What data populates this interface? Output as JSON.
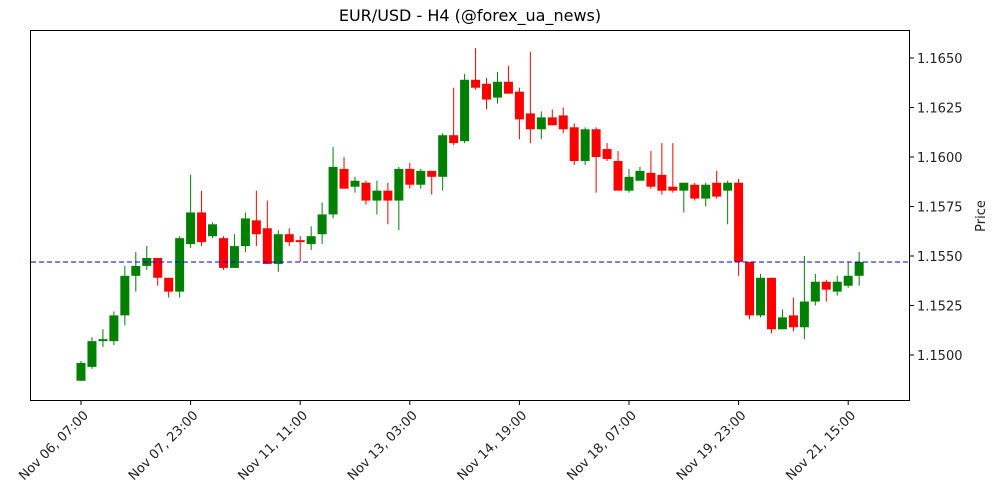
{
  "chart_data": {
    "type": "candlestick",
    "title": "EUR/USD - H4 (@forex_ua_news)",
    "xlabel": "",
    "ylabel": "Price",
    "ylim": [
      1.1481,
      1.1663
    ],
    "y_ticks": [
      "1.1500",
      "1.1525",
      "1.1550",
      "1.1575",
      "1.1600",
      "1.1625",
      "1.1650"
    ],
    "x_ticks": [
      {
        "index": 0,
        "label": "Nov 06, 07:00"
      },
      {
        "index": 10,
        "label": "Nov 07, 23:00"
      },
      {
        "index": 20,
        "label": "Nov 11, 11:00"
      },
      {
        "index": 30,
        "label": "Nov 13, 03:00"
      },
      {
        "index": 40,
        "label": "Nov 14, 19:00"
      },
      {
        "index": 50,
        "label": "Nov 18, 07:00"
      },
      {
        "index": 60,
        "label": "Nov 19, 23:00"
      },
      {
        "index": 70,
        "label": "Nov 21, 15:00"
      }
    ],
    "horizontal_line": {
      "value": 1.1547,
      "color": "#0000ff",
      "style": "dashed"
    },
    "colors": {
      "up": "#008000",
      "down": "#ff0000"
    },
    "grid": false,
    "ohlc": [
      [
        1.1487,
        1.1497,
        1.1487,
        1.1496
      ],
      [
        1.1494,
        1.1509,
        1.1493,
        1.1507
      ],
      [
        1.1507,
        1.1513,
        1.1504,
        1.1508
      ],
      [
        1.1507,
        1.1522,
        1.1505,
        1.152
      ],
      [
        1.152,
        1.1545,
        1.1515,
        1.154
      ],
      [
        1.154,
        1.1552,
        1.1532,
        1.1545
      ],
      [
        1.1545,
        1.1555,
        1.1543,
        1.1549
      ],
      [
        1.1549,
        1.1549,
        1.1535,
        1.1539
      ],
      [
        1.1539,
        1.1539,
        1.1529,
        1.1532
      ],
      [
        1.1532,
        1.156,
        1.1529,
        1.1559
      ],
      [
        1.1556,
        1.1591,
        1.1554,
        1.1572
      ],
      [
        1.1572,
        1.1583,
        1.1555,
        1.1557
      ],
      [
        1.156,
        1.1567,
        1.1559,
        1.1566
      ],
      [
        1.1559,
        1.156,
        1.1543,
        1.1544
      ],
      [
        1.1544,
        1.1561,
        1.1544,
        1.1555
      ],
      [
        1.1555,
        1.1572,
        1.1552,
        1.1569
      ],
      [
        1.1568,
        1.1583,
        1.1555,
        1.1561
      ],
      [
        1.1564,
        1.1578,
        1.1546,
        1.1546
      ],
      [
        1.1546,
        1.1563,
        1.1542,
        1.1561
      ],
      [
        1.1561,
        1.1564,
        1.1555,
        1.1557
      ],
      [
        1.1558,
        1.156,
        1.1547,
        1.1557
      ],
      [
        1.1556,
        1.1565,
        1.1553,
        1.156
      ],
      [
        1.1561,
        1.1577,
        1.1556,
        1.1571
      ],
      [
        1.1571,
        1.1605,
        1.1569,
        1.1595
      ],
      [
        1.1594,
        1.16,
        1.1584,
        1.1584
      ],
      [
        1.1585,
        1.159,
        1.1582,
        1.1588
      ],
      [
        1.1587,
        1.1588,
        1.1576,
        1.1578
      ],
      [
        1.1578,
        1.1588,
        1.1571,
        1.1583
      ],
      [
        1.1583,
        1.1587,
        1.1566,
        1.1578
      ],
      [
        1.1578,
        1.1595,
        1.1563,
        1.1594
      ],
      [
        1.1594,
        1.1597,
        1.1584,
        1.1586
      ],
      [
        1.1586,
        1.1594,
        1.1584,
        1.1593
      ],
      [
        1.1593,
        1.1593,
        1.1581,
        1.159
      ],
      [
        1.159,
        1.1612,
        1.1583,
        1.1611
      ],
      [
        1.1611,
        1.1635,
        1.1606,
        1.1607
      ],
      [
        1.1608,
        1.1642,
        1.1607,
        1.1639
      ],
      [
        1.1639,
        1.1655,
        1.1634,
        1.1635
      ],
      [
        1.1637,
        1.164,
        1.1624,
        1.1629
      ],
      [
        1.163,
        1.1643,
        1.1627,
        1.1638
      ],
      [
        1.1638,
        1.1646,
        1.1632,
        1.1632
      ],
      [
        1.1633,
        1.1635,
        1.1609,
        1.1619
      ],
      [
        1.1622,
        1.1653,
        1.1607,
        1.1614
      ],
      [
        1.1614,
        1.1623,
        1.1609,
        1.162
      ],
      [
        1.162,
        1.1624,
        1.1616,
        1.1616
      ],
      [
        1.1621,
        1.1625,
        1.1612,
        1.1614
      ],
      [
        1.1615,
        1.1617,
        1.1596,
        1.1598
      ],
      [
        1.1598,
        1.1615,
        1.1596,
        1.1614
      ],
      [
        1.1614,
        1.1615,
        1.1582,
        1.16
      ],
      [
        1.1604,
        1.1607,
        1.1598,
        1.1599
      ],
      [
        1.1598,
        1.1603,
        1.1583,
        1.1583
      ],
      [
        1.1583,
        1.1594,
        1.1582,
        1.159
      ],
      [
        1.1588,
        1.1595,
        1.1589,
        1.1593
      ],
      [
        1.1592,
        1.1603,
        1.1584,
        1.1585
      ],
      [
        1.1591,
        1.1607,
        1.1581,
        1.1583
      ],
      [
        1.1585,
        1.1607,
        1.1582,
        1.1583
      ],
      [
        1.1583,
        1.1587,
        1.1572,
        1.1587
      ],
      [
        1.1586,
        1.1587,
        1.1578,
        1.1579
      ],
      [
        1.1579,
        1.1587,
        1.1575,
        1.1586
      ],
      [
        1.1587,
        1.1593,
        1.1579,
        1.158
      ],
      [
        1.1583,
        1.1588,
        1.1566,
        1.1587
      ],
      [
        1.1587,
        1.1589,
        1.154,
        1.1547
      ],
      [
        1.1547,
        1.1547,
        1.1518,
        1.152
      ],
      [
        1.152,
        1.1541,
        1.1519,
        1.1539
      ],
      [
        1.1539,
        1.1539,
        1.1511,
        1.1513
      ],
      [
        1.1513,
        1.1523,
        1.1513,
        1.1519
      ],
      [
        1.152,
        1.1529,
        1.1512,
        1.1514
      ],
      [
        1.1514,
        1.155,
        1.1508,
        1.1527
      ],
      [
        1.1527,
        1.1541,
        1.1525,
        1.1537
      ],
      [
        1.1537,
        1.1538,
        1.1527,
        1.1533
      ],
      [
        1.1532,
        1.154,
        1.153,
        1.1537
      ],
      [
        1.1535,
        1.1547,
        1.1534,
        1.154
      ],
      [
        1.154,
        1.1552,
        1.1535,
        1.1547
      ]
    ]
  }
}
